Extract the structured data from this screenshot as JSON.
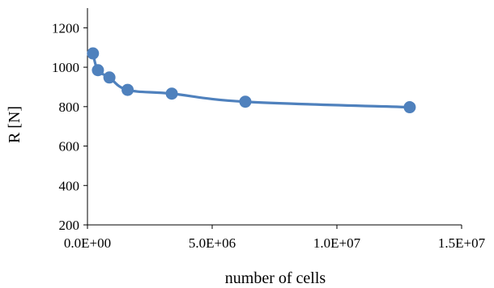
{
  "chart_data": {
    "type": "scatter",
    "title": "",
    "xlabel": "number of cells",
    "ylabel": "R [N]",
    "xlim": [
      0,
      15000000
    ],
    "ylim": [
      200,
      1300
    ],
    "x_ticks": [
      0,
      5000000,
      10000000,
      15000000
    ],
    "x_tick_labels": [
      "0.0E+00",
      "5.0E+06",
      "1.0E+07",
      "1.5E+07"
    ],
    "y_ticks": [
      200,
      400,
      600,
      800,
      1000,
      1200
    ],
    "y_tick_labels": [
      "200",
      "400",
      "600",
      "800",
      "1000",
      "1200"
    ],
    "grid": false,
    "legend": "none",
    "series": [
      {
        "color": "#4f81bd",
        "line": "smoothed",
        "marker": "circle",
        "points": [
          {
            "x": 220000,
            "y": 1070
          },
          {
            "x": 420000,
            "y": 985
          },
          {
            "x": 880000,
            "y": 948
          },
          {
            "x": 1610000,
            "y": 885
          },
          {
            "x": 3380000,
            "y": 866
          },
          {
            "x": 6330000,
            "y": 825
          },
          {
            "x": 12920000,
            "y": 797
          }
        ]
      }
    ]
  }
}
